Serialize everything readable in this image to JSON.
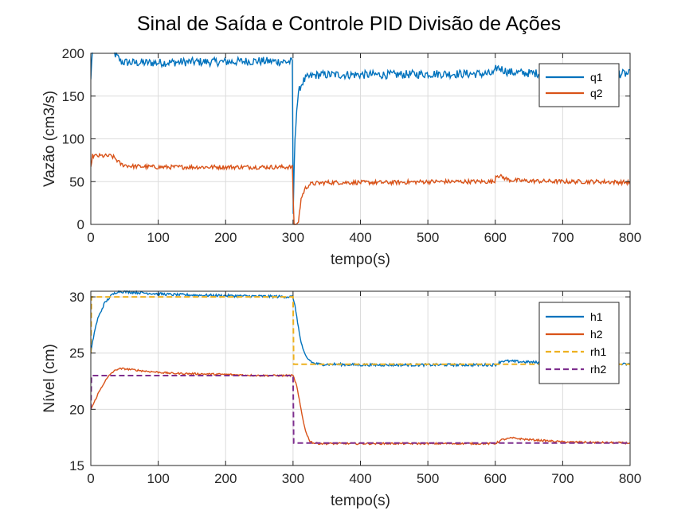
{
  "title": "Sinal de Saída e Controle PID Divisão de Ações",
  "colors": {
    "blue": "#0072BD",
    "orange": "#D95319",
    "yellow": "#EDB120",
    "purple": "#7E2F8E",
    "grid": "#dcdcdc",
    "axis": "#262626"
  },
  "chart_data": [
    {
      "type": "line",
      "xlabel": "tempo(s)",
      "ylabel": "Vazão (cm3/s)",
      "xlim": [
        0,
        800
      ],
      "ylim": [
        0,
        200
      ],
      "xticks": [
        0,
        100,
        200,
        300,
        400,
        500,
        600,
        700,
        800
      ],
      "yticks": [
        0,
        50,
        100,
        150,
        200
      ],
      "grid": true,
      "legend_position": "top-right",
      "noise": [
        5,
        2.5
      ],
      "series": [
        {
          "name": "q1",
          "color": "#0072BD",
          "style": "solid",
          "x": [
            0,
            2,
            5,
            30,
            35,
            45,
            60,
            100,
            150,
            200,
            250,
            298,
            299.5,
            300,
            301,
            303,
            306,
            310,
            315,
            320,
            330,
            340,
            360,
            400,
            450,
            500,
            550,
            599,
            601,
            605,
            620,
            640,
            700,
            750,
            800
          ],
          "y": [
            168,
            205,
            205,
            205,
            200,
            190,
            189,
            189,
            190,
            190,
            191,
            190,
            190,
            2,
            40,
            105,
            140,
            160,
            167,
            171,
            174,
            175,
            175,
            175,
            175,
            176,
            176,
            176,
            183,
            183,
            178,
            177,
            176,
            176,
            176
          ]
        },
        {
          "name": "q2",
          "color": "#D95319",
          "style": "solid",
          "x": [
            0,
            2,
            5,
            30,
            35,
            45,
            60,
            100,
            150,
            200,
            250,
            298,
            299.5,
            301,
            305,
            308,
            312,
            318,
            325,
            335,
            350,
            400,
            450,
            500,
            550,
            599,
            601,
            605,
            620,
            640,
            700,
            750,
            800
          ],
          "y": [
            65,
            80,
            80,
            80,
            78,
            70,
            68,
            67,
            67,
            67,
            67,
            67,
            67,
            0,
            0,
            3,
            30,
            42,
            47,
            48,
            49,
            49,
            49,
            50,
            50,
            50,
            58,
            57,
            52,
            51,
            50,
            50,
            49
          ]
        }
      ]
    },
    {
      "type": "line",
      "xlabel": "tempo(s)",
      "ylabel": "Nível (cm)",
      "xlim": [
        0,
        800
      ],
      "ylim": [
        15,
        30.5
      ],
      "xticks": [
        0,
        100,
        200,
        300,
        400,
        500,
        600,
        700,
        800
      ],
      "yticks": [
        15,
        20,
        25,
        30
      ],
      "grid": true,
      "legend_position": "top-right",
      "noise": [
        0.12,
        0.08,
        0,
        0
      ],
      "series": [
        {
          "name": "h1",
          "color": "#0072BD",
          "style": "solid",
          "x": [
            0,
            5,
            10,
            20,
            30,
            40,
            50,
            80,
            120,
            200,
            250,
            300,
            305,
            310,
            315,
            320,
            330,
            340,
            360,
            400,
            500,
            600,
            610,
            630,
            650,
            700,
            800
          ],
          "y": [
            25,
            26.8,
            28,
            29.4,
            30.1,
            30.5,
            30.45,
            30.35,
            30.2,
            30.1,
            30.05,
            30,
            28.5,
            26.5,
            25.2,
            24.6,
            24.1,
            24,
            24,
            23.95,
            23.95,
            23.95,
            24.3,
            24.25,
            24.2,
            24.05,
            24
          ]
        },
        {
          "name": "h2",
          "color": "#D95319",
          "style": "solid",
          "x": [
            0,
            5,
            10,
            20,
            30,
            40,
            50,
            80,
            120,
            200,
            250,
            300,
            305,
            310,
            315,
            320,
            325,
            330,
            340,
            360,
            400,
            500,
            600,
            610,
            625,
            640,
            700,
            800
          ],
          "y": [
            20,
            20.6,
            21.3,
            22.4,
            23.2,
            23.6,
            23.6,
            23.4,
            23.2,
            23.1,
            23.0,
            23,
            22.2,
            20.6,
            19.0,
            17.8,
            17.2,
            17.0,
            16.95,
            16.95,
            16.95,
            16.95,
            16.95,
            17.3,
            17.45,
            17.35,
            17.1,
            17
          ]
        },
        {
          "name": "rh1",
          "color": "#EDB120",
          "style": "dashed",
          "x": [
            0,
            1,
            300,
            301,
            800
          ],
          "y": [
            25,
            30,
            30,
            24,
            24
          ]
        },
        {
          "name": "rh2",
          "color": "#7E2F8E",
          "style": "dashed",
          "x": [
            0,
            1,
            300,
            301,
            600,
            601,
            800
          ],
          "y": [
            20,
            23,
            23,
            17,
            17,
            17,
            17
          ]
        }
      ]
    }
  ]
}
